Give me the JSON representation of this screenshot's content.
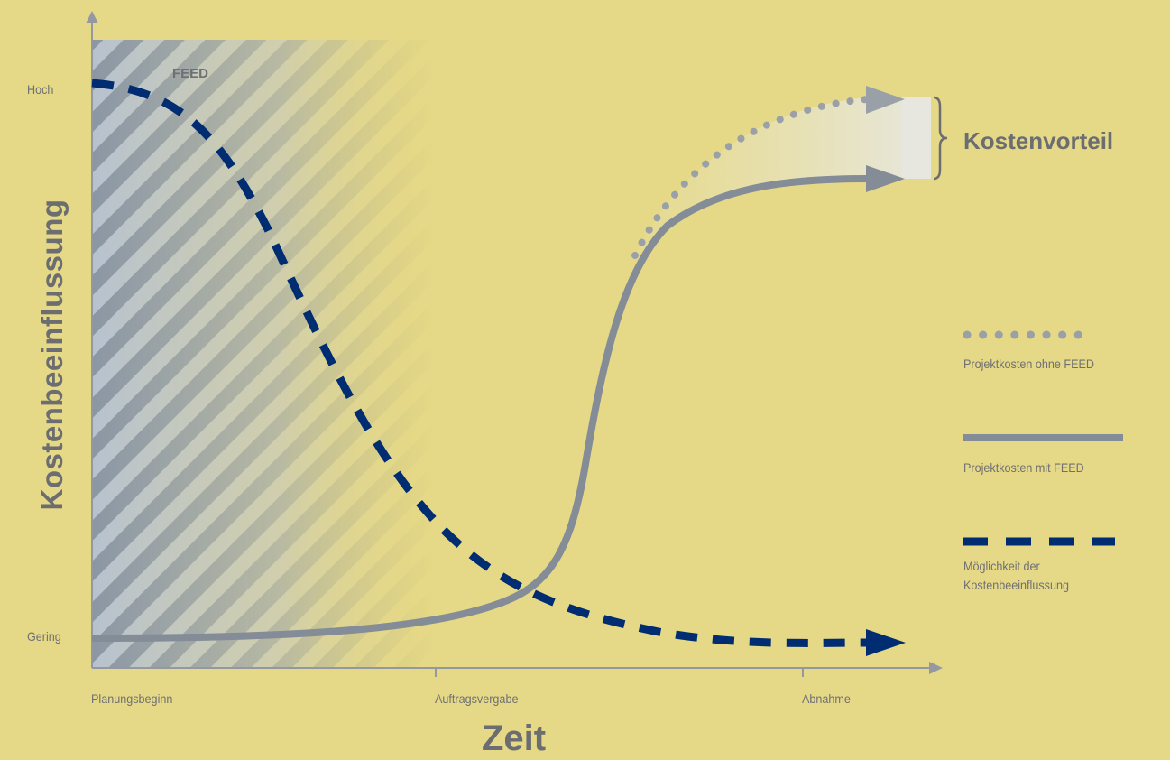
{
  "y_axis": {
    "title": "Kostenbeeinflussung",
    "top_label": "Hoch",
    "bottom_label": "Gering"
  },
  "x_axis": {
    "title": "Zeit",
    "ticks": [
      "Planungsbeginn",
      "Auftragsvergabe",
      "Abnahme"
    ]
  },
  "phase_label": "FEED",
  "advantage_label": "Kostenvorteil",
  "legend": [
    {
      "label": "Projektkosten ohne FEED",
      "style": "dotted",
      "color": "#9aa0a8"
    },
    {
      "label": "Projektkosten mit FEED",
      "style": "solid",
      "color": "#838c97"
    },
    {
      "label_line1": "Möglichkeit der",
      "label_line2": "Kostenbeeinflussung",
      "style": "dashed",
      "color": "#002d72"
    }
  ],
  "colors": {
    "background": "#e5d886",
    "axis": "#9499a1",
    "text": "#6f7073",
    "navy": "#002d72",
    "grey_curve": "#838c97",
    "dotted_curve": "#9aa0a8"
  }
}
